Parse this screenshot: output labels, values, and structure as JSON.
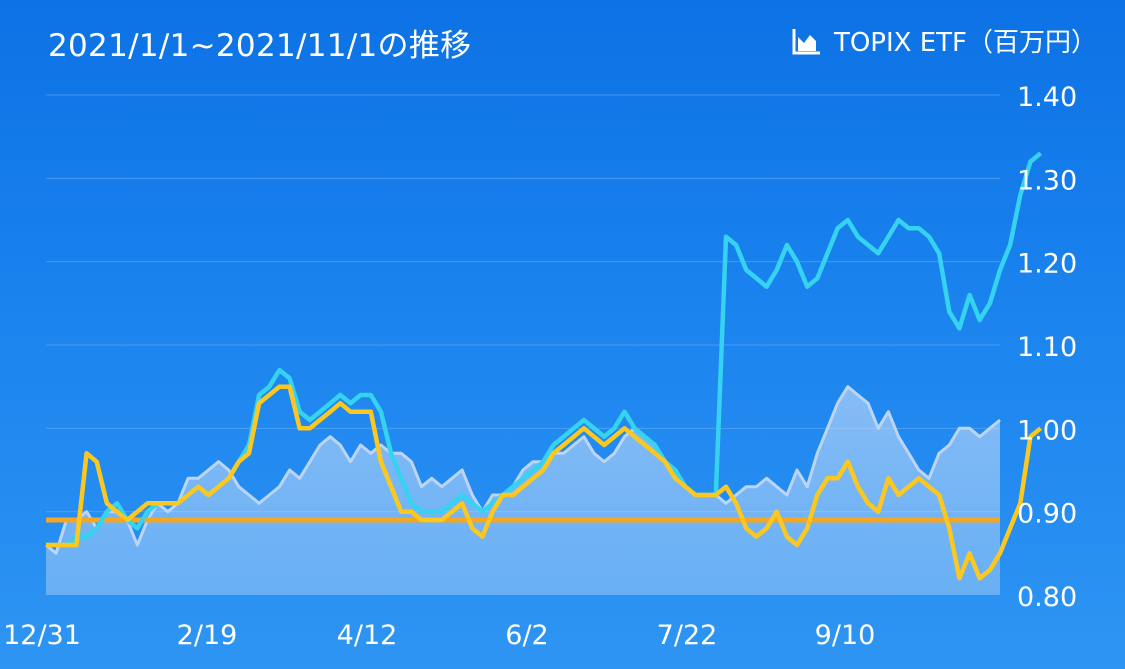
{
  "title": "2021/1/1~2021/11/1の推移",
  "legend": {
    "label": "TOPIX ETF（百万円）",
    "icon": "area-chart-icon"
  },
  "colors": {
    "background_top": "#0d72e5",
    "background_bottom": "#2e95f3",
    "gridline": "#6fb0f5",
    "topix_area": "#dbe8fb",
    "topix_line": "#bcd5f7",
    "cyan_line": "#35d3f0",
    "yellow_line": "#fcc820",
    "orange_baseline": "#f5a623",
    "text": "#ffffff"
  },
  "chart_data": {
    "type": "line",
    "title": "2021/1/1~2021/11/1の推移",
    "xlabel": "",
    "ylabel": "",
    "x_ticks": [
      "12/31",
      "2/19",
      "4/12",
      "6/2",
      "7/22",
      "9/10"
    ],
    "y_ticks": [
      "1.40",
      "1.30",
      "1.20",
      "1.10",
      "1.00",
      "0.90",
      "0.80"
    ],
    "ylim": [
      0.8,
      1.4
    ],
    "grid": true,
    "legend": "top-right",
    "baseline_value": 0.89,
    "series": [
      {
        "name": "TOPIX ETF（百万円）",
        "style": "area",
        "values": [
          0.86,
          0.85,
          0.89,
          0.89,
          0.9,
          0.88,
          0.9,
          0.9,
          0.89,
          0.86,
          0.89,
          0.91,
          0.9,
          0.91,
          0.94,
          0.94,
          0.95,
          0.96,
          0.95,
          0.93,
          0.92,
          0.91,
          0.92,
          0.93,
          0.95,
          0.94,
          0.96,
          0.98,
          0.99,
          0.98,
          0.96,
          0.98,
          0.97,
          0.98,
          0.97,
          0.97,
          0.96,
          0.93,
          0.94,
          0.93,
          0.94,
          0.95,
          0.92,
          0.9,
          0.92,
          0.92,
          0.93,
          0.95,
          0.96,
          0.96,
          0.97,
          0.97,
          0.98,
          0.99,
          0.97,
          0.96,
          0.97,
          0.99,
          1.0,
          0.99,
          0.98,
          0.96,
          0.95,
          0.93,
          0.92,
          0.92,
          0.92,
          0.91,
          0.92,
          0.93,
          0.93,
          0.94,
          0.93,
          0.92,
          0.95,
          0.93,
          0.97,
          1.0,
          1.03,
          1.05,
          1.04,
          1.03,
          1.0,
          1.02,
          0.99,
          0.97,
          0.95,
          0.94,
          0.97,
          0.98,
          1.0,
          1.0,
          0.99,
          1.0,
          1.01
        ]
      },
      {
        "name": "",
        "style": "line",
        "values": [
          0.86,
          0.86,
          0.86,
          0.87,
          0.87,
          0.88,
          0.9,
          0.91,
          0.89,
          0.88,
          0.9,
          0.91,
          0.91,
          0.91,
          0.92,
          0.93,
          0.92,
          0.93,
          0.94,
          0.96,
          0.98,
          1.04,
          1.05,
          1.07,
          1.06,
          1.02,
          1.01,
          1.02,
          1.03,
          1.04,
          1.03,
          1.04,
          1.04,
          1.02,
          0.97,
          0.94,
          0.91,
          0.9,
          0.9,
          0.9,
          0.91,
          0.92,
          0.91,
          0.9,
          0.91,
          0.92,
          0.93,
          0.94,
          0.95,
          0.96,
          0.98,
          0.99,
          1.0,
          1.01,
          1.0,
          0.99,
          1.0,
          1.02,
          1.0,
          0.99,
          0.98,
          0.96,
          0.95,
          0.93,
          0.92,
          0.92,
          0.92,
          1.23,
          1.22,
          1.19,
          1.18,
          1.17,
          1.19,
          1.22,
          1.2,
          1.17,
          1.18,
          1.21,
          1.24,
          1.25,
          1.23,
          1.22,
          1.21,
          1.23,
          1.25,
          1.24,
          1.24,
          1.23,
          1.21,
          1.14,
          1.12,
          1.16,
          1.13,
          1.15,
          1.19,
          1.22,
          1.28,
          1.32,
          1.33
        ]
      },
      {
        "name": "",
        "style": "line",
        "values": [
          0.86,
          0.86,
          0.86,
          0.86,
          0.97,
          0.96,
          0.91,
          0.9,
          0.89,
          0.9,
          0.91,
          0.91,
          0.91,
          0.91,
          0.92,
          0.93,
          0.92,
          0.93,
          0.94,
          0.96,
          0.97,
          1.03,
          1.04,
          1.05,
          1.05,
          1.0,
          1.0,
          1.01,
          1.02,
          1.03,
          1.02,
          1.02,
          1.02,
          0.96,
          0.93,
          0.9,
          0.9,
          0.89,
          0.89,
          0.89,
          0.9,
          0.91,
          0.88,
          0.87,
          0.9,
          0.92,
          0.92,
          0.93,
          0.94,
          0.95,
          0.97,
          0.98,
          0.99,
          1.0,
          0.99,
          0.98,
          0.99,
          1.0,
          0.99,
          0.98,
          0.97,
          0.96,
          0.94,
          0.93,
          0.92,
          0.92,
          0.92,
          0.93,
          0.91,
          0.88,
          0.87,
          0.88,
          0.9,
          0.87,
          0.86,
          0.88,
          0.92,
          0.94,
          0.94,
          0.96,
          0.93,
          0.91,
          0.9,
          0.94,
          0.92,
          0.93,
          0.94,
          0.93,
          0.92,
          0.88,
          0.82,
          0.85,
          0.82,
          0.83,
          0.85,
          0.88,
          0.91,
          0.99,
          1.0
        ]
      }
    ]
  }
}
